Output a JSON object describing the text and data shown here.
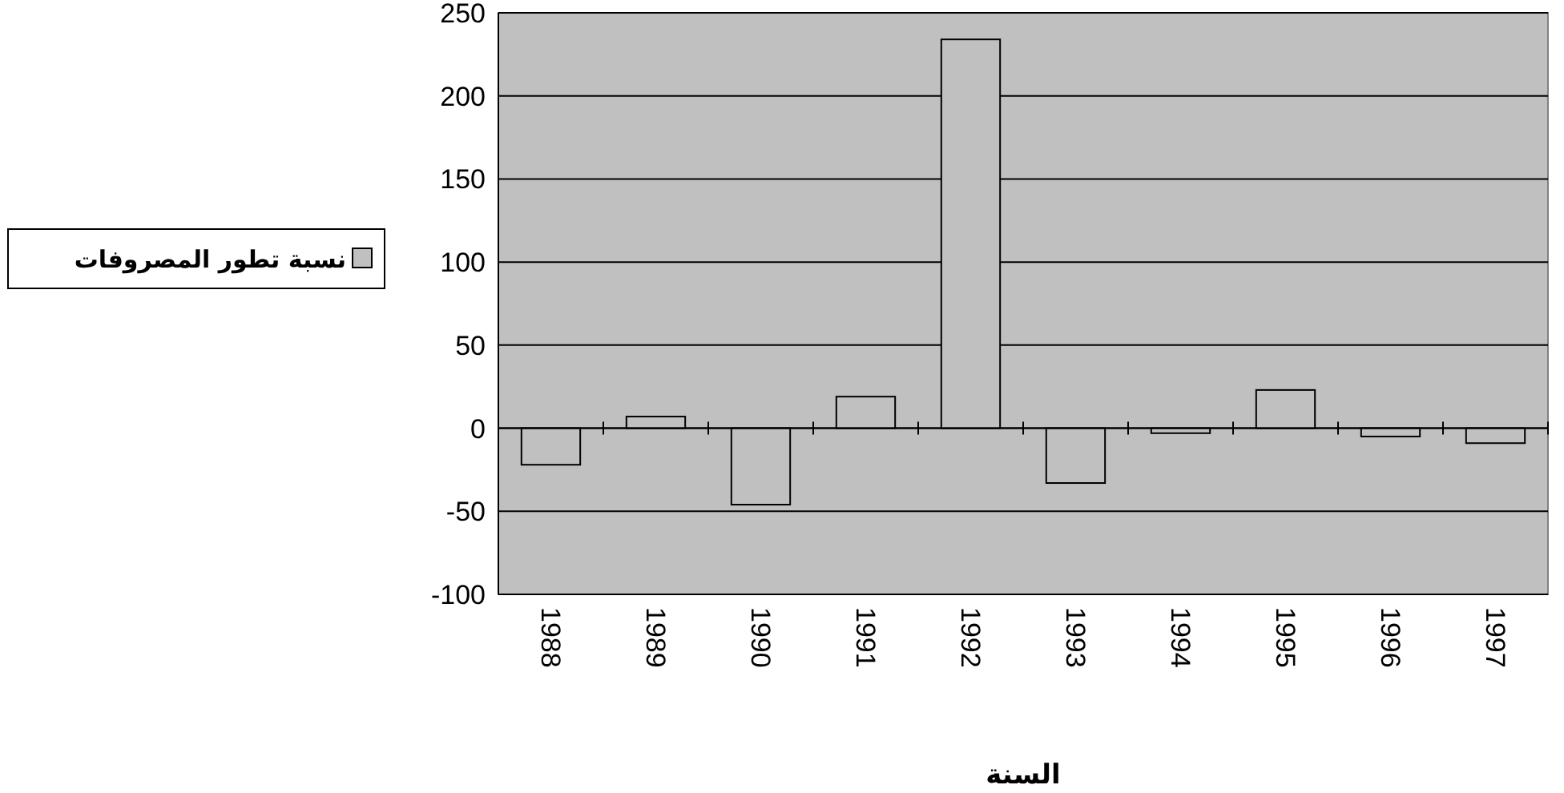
{
  "chart_data": {
    "type": "bar",
    "xlabel": "السنة",
    "categories": [
      "1988",
      "1989",
      "1990",
      "1991",
      "1992",
      "1993",
      "1994",
      "1995",
      "1996",
      "1997"
    ],
    "series": [
      {
        "name": "نسبة تطور المصروفات",
        "color": "#c0c0c0",
        "values": [
          -22,
          7,
          -46,
          19,
          234,
          -33,
          -3,
          23,
          -5,
          -9
        ]
      }
    ],
    "ylim": [
      -100,
      250
    ],
    "yticks": [
      -100,
      -50,
      0,
      50,
      100,
      150,
      200,
      250
    ],
    "grid": "y",
    "legend": "left"
  }
}
